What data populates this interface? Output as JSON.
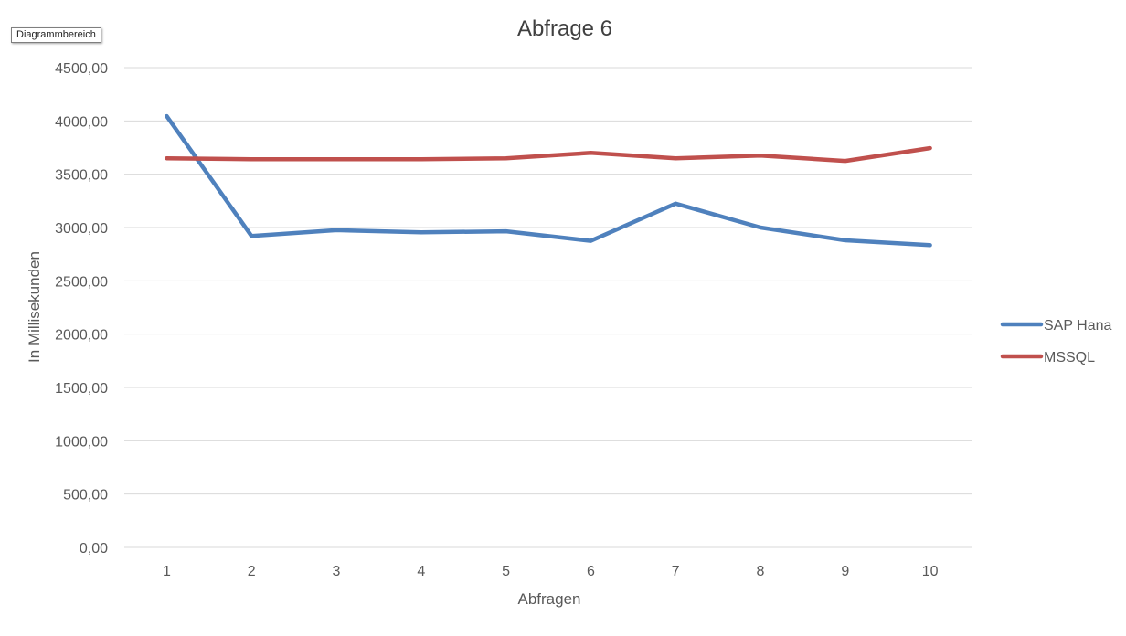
{
  "tooltip": "Diagrammbereich",
  "chart_data": {
    "type": "line",
    "title": "Abfrage 6",
    "xlabel": "Abfragen",
    "ylabel": "In Millisekunden",
    "categories": [
      "1",
      "2",
      "3",
      "4",
      "5",
      "6",
      "7",
      "8",
      "9",
      "10"
    ],
    "ylim": [
      0,
      4500
    ],
    "yticks": [
      "0,00",
      "500,00",
      "1000,00",
      "1500,00",
      "2000,00",
      "2500,00",
      "3000,00",
      "3500,00",
      "4000,00",
      "4500,00"
    ],
    "grid": true,
    "legend_position": "right",
    "series": [
      {
        "name": "SAP Hana",
        "color": "#4f81bd",
        "values": [
          4045,
          2920,
          2975,
          2955,
          2965,
          2875,
          3225,
          3000,
          2880,
          2835
        ]
      },
      {
        "name": "MSSQL",
        "color": "#c0504d",
        "values": [
          3650,
          3640,
          3640,
          3640,
          3650,
          3700,
          3650,
          3675,
          3625,
          3745
        ]
      }
    ]
  }
}
